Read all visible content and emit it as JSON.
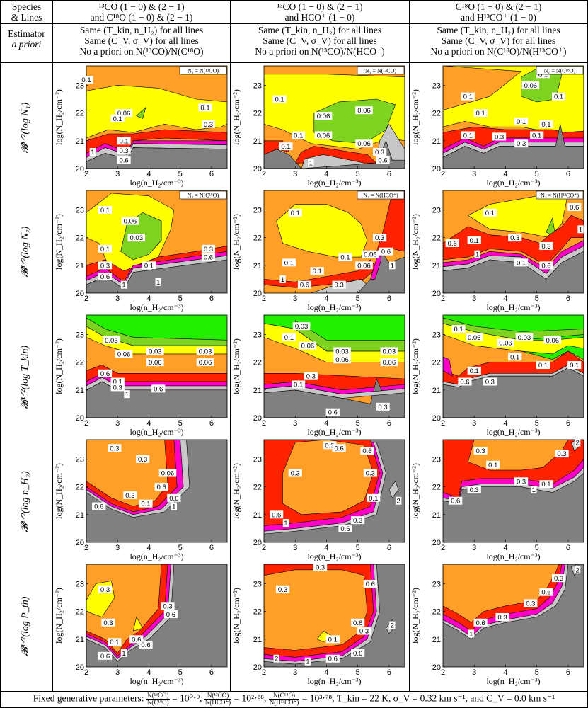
{
  "header": {
    "corner_line1": "Species",
    "corner_line2": "& Lines",
    "estimator_line1": "Estimator",
    "estimator_line2": "a priori",
    "columns": [
      {
        "species_line1": "¹³CO (1 − 0) & (2 − 1)",
        "species_line2": "and C¹⁸O (1 − 0) & (2 − 1)",
        "est1": "Same (T_kin, n_H₂) for all lines",
        "est2": "Same (C_V, σ_V) for all lines",
        "est3": "No a priori on N(¹³CO)/N(C¹⁸O)"
      },
      {
        "species_line1": "¹³CO (1 − 0) & (2 − 1)",
        "species_line2": "and HCO⁺ (1 − 0)",
        "est1": "Same (T_kin, n_H₂) for all lines",
        "est2": "Same (C_V, σ_V) for all lines",
        "est3": "No a priori on N(¹³CO)/N(HCO⁺)"
      },
      {
        "species_line1": "C¹⁸O (1 − 0) & (2 − 1)",
        "species_line2": "and H¹³CO⁺ (1 − 0)",
        "est1": "Same (T_kin, n_H₂) for all lines",
        "est2": "Same (C_V, σ_V) for all lines",
        "est3": "No a priori on N(C¹⁸O)/N(H¹³CO⁺)"
      }
    ]
  },
  "rows": [
    {
      "label": "𝓑¹ᐟ²(log N₁)"
    },
    {
      "label": "𝓑¹ᐟ²(log N₂)"
    },
    {
      "label": "𝓑¹ᐟ²(log T_kin)"
    },
    {
      "label": "𝓑¹ᐟ²(log n_H₂)"
    },
    {
      "label": "𝓑¹ᐟ²(log P_th)"
    }
  ],
  "legend_boxes": [
    [
      "N₁ = N(¹³CO)",
      "N₁ = N(¹³CO)",
      "N₁ = N(C¹⁸O)"
    ],
    [
      "N₂ = N(C¹⁸O)",
      "N₂ = N(HCO⁺)",
      "N₂ = N(H¹³CO⁺)"
    ]
  ],
  "axes": {
    "xlabel": "log(n_H₂/cm⁻³)",
    "ylabel": "log(N_H₂/cm⁻²)",
    "xticks": [
      "2",
      "3",
      "4",
      "5",
      "6"
    ],
    "yticks": [
      "20",
      "21",
      "22",
      "23"
    ],
    "xlim": [
      2,
      6.5
    ],
    "ylim": [
      20,
      23.7
    ]
  },
  "colors": {
    "green": "#7ed321",
    "yellow": "#ffff00",
    "orange": "#ff9f28",
    "red": "#ff2200",
    "magenta": "#ff00c8",
    "lightgray": "#c8c8c8",
    "darkgray": "#808080",
    "brightgreen": "#22ee00"
  },
  "contour_levels": [
    "0.03",
    "0.06",
    "0.1",
    "0.3",
    "0.6",
    "1",
    "2"
  ],
  "footer": {
    "prefix": "Fixed generative parameters:",
    "r1_num": "N(¹³CO)",
    "r1_den": "N(C¹⁸O)",
    "r1_val": "= 10⁰·⁹,",
    "r2_num": "N(¹³CO)",
    "r2_den": "N(HCO⁺)",
    "r2_val": "= 10²·⁸⁸,",
    "r3_num": "N(C¹⁸O)",
    "r3_den": "N(H¹³CO⁺)",
    "r3_val": "= 10³·⁷⁸,",
    "rest": "T_kin = 22 K, σ_V = 0.32 km s⁻¹, and C_V = 0.0 km s⁻¹"
  }
}
